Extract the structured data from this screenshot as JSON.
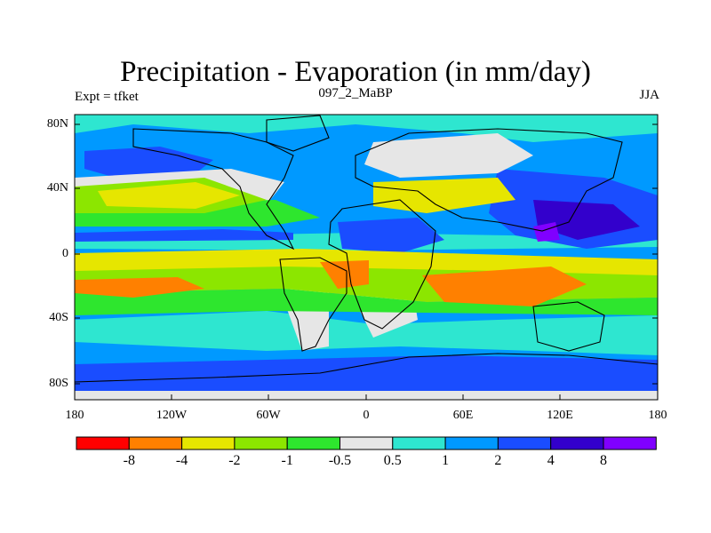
{
  "title": "Precipitation - Evaporation (in mm/day)",
  "left_label": "Expt = tfket",
  "center_label": "097_2_MaBP",
  "right_label": "JJA",
  "y_ticks": [
    "80N",
    "40N",
    "0",
    "40S",
    "80S"
  ],
  "x_ticks": [
    "180",
    "120W",
    "60W",
    "0",
    "60E",
    "120E",
    "180"
  ],
  "colorbar": {
    "colors": [
      "#ff0000",
      "#ff8000",
      "#e6e600",
      "#8ce600",
      "#2ee62e",
      "#e6e6e6",
      "#2ee6d0",
      "#0099ff",
      "#1a4dff",
      "#3300cc",
      "#8000ff"
    ],
    "labels": [
      "-8",
      "-4",
      "-2",
      "-1",
      "-0.5",
      "0.5",
      "1",
      "2",
      "4",
      "8"
    ]
  },
  "map_colors": {
    "ocean_bg": "#0099ff",
    "strong_wet": "#1a4dff",
    "very_wet": "#3300cc",
    "extreme_wet": "#8000ff",
    "light_wet": "#2ee6d0",
    "neutral": "#e6e6e6",
    "slight_dry": "#2ee62e",
    "dry": "#8ce600",
    "drier": "#e6e600",
    "very_dry": "#ff8000"
  }
}
